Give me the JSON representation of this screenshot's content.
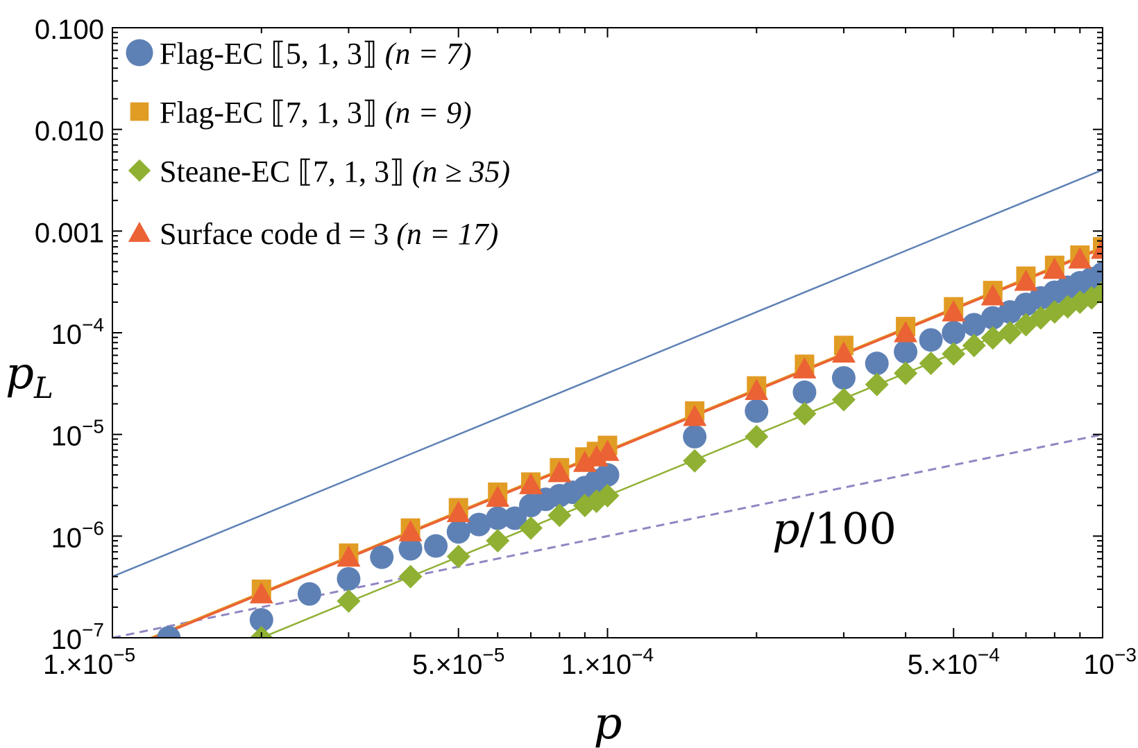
{
  "chart_data": {
    "type": "scatter",
    "title": "",
    "xlabel": "p",
    "ylabel": "p_L",
    "xscale": "log",
    "yscale": "log",
    "xlim": [
      1e-05,
      0.001
    ],
    "ylim": [
      1e-07,
      0.1
    ],
    "x_ticks": [
      {
        "value": 1e-05,
        "base": "1.×10",
        "exp": "−5"
      },
      {
        "value": 5e-05,
        "base": "5.×10",
        "exp": "−5"
      },
      {
        "value": 0.0001,
        "base": "1.×10",
        "exp": "−4"
      },
      {
        "value": 0.0005,
        "base": "5.×10",
        "exp": "−4"
      },
      {
        "value": 0.001,
        "base": "10",
        "exp": "−3"
      }
    ],
    "y_ticks": [
      {
        "value": 0.1,
        "base": "0.100",
        "exp": ""
      },
      {
        "value": 0.01,
        "base": "0.010",
        "exp": ""
      },
      {
        "value": 0.001,
        "base": "0.001",
        "exp": ""
      },
      {
        "value": 0.0001,
        "base": "10",
        "exp": "−4"
      },
      {
        "value": 1e-05,
        "base": "10",
        "exp": "−5"
      },
      {
        "value": 1e-06,
        "base": "10",
        "exp": "−6"
      },
      {
        "value": 1e-07,
        "base": "10",
        "exp": "−7"
      }
    ],
    "legend_position": "top-left",
    "series": [
      {
        "name": "Flag-EC ⟦5, 1, 3⟧ (n = 7)",
        "legend_main": "Flag-EC ⟦5, 1, 3⟧ ",
        "legend_paren": "(n = 7)",
        "marker": "circle",
        "color": "#5e81b5",
        "fit_coefficient": 4000,
        "x": [
          1.3e-05,
          2e-05,
          2.5e-05,
          3e-05,
          3.5e-05,
          4e-05,
          4.5e-05,
          5e-05,
          5.5e-05,
          6e-05,
          6.5e-05,
          7e-05,
          7.5e-05,
          8e-05,
          8.5e-05,
          9e-05,
          9.5e-05,
          0.0001,
          0.00015,
          0.0002,
          0.00025,
          0.0003,
          0.00035,
          0.0004,
          0.00045,
          0.0005,
          0.00055,
          0.0006,
          0.00065,
          0.0007,
          0.00075,
          0.0008,
          0.00085,
          0.0009,
          0.00095,
          0.001
        ],
        "y": [
          1e-07,
          1.5e-07,
          2.7e-07,
          3.8e-07,
          6.2e-07,
          7.5e-07,
          8e-07,
          1.1e-06,
          1.3e-06,
          1.5e-06,
          1.5e-06,
          2e-06,
          2.3e-06,
          2.5e-06,
          2.7e-06,
          3e-06,
          3.5e-06,
          4e-06,
          9.5e-06,
          1.7e-05,
          2.6e-05,
          3.6e-05,
          5e-05,
          6.5e-05,
          8.5e-05,
          0.0001,
          0.00012,
          0.00014,
          0.00016,
          0.00019,
          0.00022,
          0.00025,
          0.00028,
          0.00031,
          0.00034,
          0.00038
        ]
      },
      {
        "name": "Flag-EC ⟦7, 1, 3⟧ (n = 9)",
        "legend_main": "Flag-EC ⟦7, 1, 3⟧ ",
        "legend_paren": "(n = 9)",
        "marker": "square",
        "color": "#e19c24",
        "fit_coefficient": 700,
        "x": [
          2e-05,
          3e-05,
          4e-05,
          5e-05,
          6e-05,
          7e-05,
          8e-05,
          9e-05,
          9.5e-05,
          0.0001,
          0.00015,
          0.0002,
          0.00025,
          0.0003,
          0.0004,
          0.0005,
          0.0006,
          0.0007,
          0.0008,
          0.0009,
          0.001
        ],
        "y": [
          3e-07,
          6.8e-07,
          1.2e-06,
          1.9e-06,
          2.7e-06,
          3.4e-06,
          4.7e-06,
          6e-06,
          6.8e-06,
          7.8e-06,
          1.7e-05,
          3e-05,
          4.9e-05,
          7.5e-05,
          0.000115,
          0.00018,
          0.00026,
          0.00036,
          0.00046,
          0.00058,
          0.0007
        ]
      },
      {
        "name": "Steane-EC ⟦7, 1, 3⟧ (n ≥ 35)",
        "legend_main": "Steane-EC ⟦7, 1, 3⟧ ",
        "legend_paren": "(n ≥ 35)",
        "marker": "diamond",
        "color": "#8fb032",
        "fit_coefficient": 250,
        "x": [
          2e-05,
          3e-05,
          4e-05,
          5e-05,
          6e-05,
          7e-05,
          8e-05,
          9e-05,
          9.5e-05,
          0.0001,
          0.00015,
          0.0002,
          0.00025,
          0.0003,
          0.00035,
          0.0004,
          0.00045,
          0.0005,
          0.00055,
          0.0006,
          0.00065,
          0.0007,
          0.00075,
          0.0008,
          0.00085,
          0.0009,
          0.00095,
          0.001
        ],
        "y": [
          1e-07,
          2.3e-07,
          4e-07,
          6.3e-07,
          9e-07,
          1.2e-06,
          1.6e-06,
          2e-06,
          2.2e-06,
          2.5e-06,
          5.5e-06,
          9.5e-06,
          1.6e-05,
          2.2e-05,
          3.1e-05,
          4e-05,
          5e-05,
          6.2e-05,
          7.5e-05,
          8.9e-05,
          0.0001,
          0.00012,
          0.00014,
          0.00016,
          0.00018,
          0.0002,
          0.00022,
          0.00025
        ]
      },
      {
        "name": "Surface code d = 3 (n = 17)",
        "legend_main": "Surface code d = 3 ",
        "legend_paren": "(n = 17)",
        "marker": "triangle",
        "color": "#eb6235",
        "fit_coefficient": 680,
        "x": [
          2e-05,
          3e-05,
          4e-05,
          5e-05,
          6e-05,
          7e-05,
          8e-05,
          9e-05,
          9.5e-05,
          0.0001,
          0.00015,
          0.0002,
          0.00025,
          0.0003,
          0.0004,
          0.0005,
          0.0006,
          0.0007,
          0.0008,
          0.0009,
          0.001
        ],
        "y": [
          2.7e-07,
          6.2e-07,
          1.1e-06,
          1.7e-06,
          2.4e-06,
          3.2e-06,
          4.2e-06,
          5.3e-06,
          6e-06,
          6.8e-06,
          1.5e-05,
          2.7e-05,
          4.4e-05,
          6.3e-05,
          0.0001,
          0.00016,
          0.00023,
          0.00032,
          0.00042,
          0.00053,
          0.00066
        ]
      }
    ],
    "reference_line": {
      "label_p": "p",
      "label_rest": "/100",
      "color": "#8f86c2",
      "style": "dashed",
      "divisor": 100
    }
  }
}
